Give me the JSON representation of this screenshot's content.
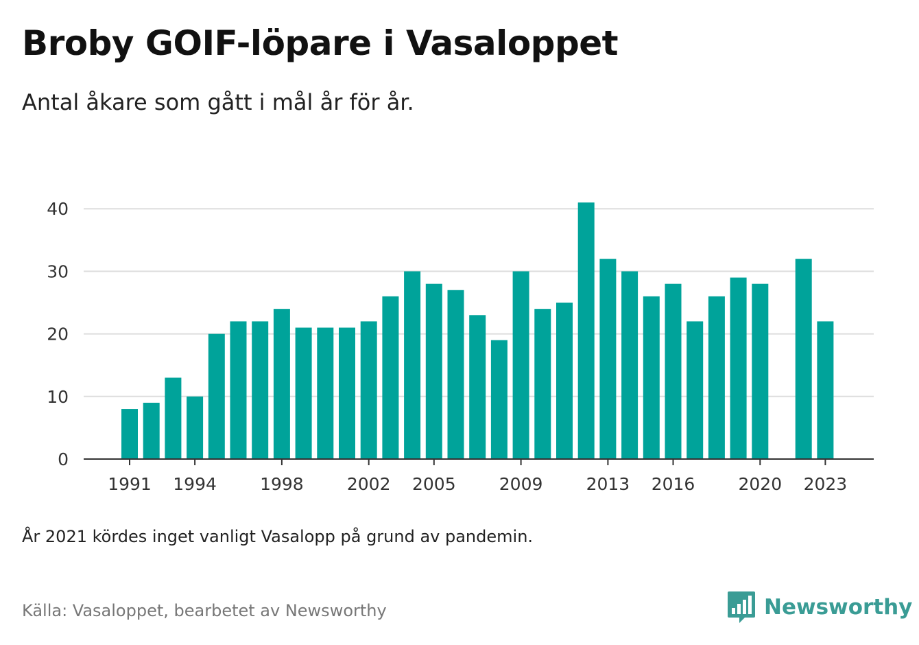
{
  "title": "Broby GOIF-löpare i Vasaloppet",
  "subtitle": "Antal åkare som gått i mål år för år.",
  "note": "År 2021 kördes inget vanligt Vasalopp på grund av pandemin.",
  "source": "Källa: Vasaloppet, bearbetet av Newsworthy",
  "brand": {
    "name": "Newsworthy",
    "icon": "newsworthy-logo-icon",
    "color": "#3a9c95"
  },
  "colors": {
    "bar": "#00a39a",
    "grid": "#dddddd",
    "axis": "#333333"
  },
  "chart_data": {
    "type": "bar",
    "x": [
      1991,
      1992,
      1993,
      1994,
      1995,
      1996,
      1997,
      1998,
      1999,
      2000,
      2001,
      2002,
      2003,
      2004,
      2005,
      2006,
      2007,
      2008,
      2009,
      2010,
      2011,
      2012,
      2013,
      2014,
      2015,
      2016,
      2017,
      2018,
      2019,
      2020,
      2021,
      2022,
      2023
    ],
    "values": [
      8,
      9,
      13,
      10,
      20,
      22,
      22,
      24,
      21,
      21,
      21,
      22,
      26,
      30,
      28,
      27,
      23,
      19,
      30,
      24,
      25,
      41,
      32,
      30,
      26,
      28,
      22,
      26,
      29,
      28,
      null,
      32,
      22
    ],
    "xticks": [
      1991,
      1994,
      1998,
      2002,
      2005,
      2009,
      2013,
      2016,
      2020,
      2023
    ],
    "yticks": [
      0,
      10,
      20,
      30,
      40
    ],
    "ylim": [
      0,
      42
    ],
    "grid": true,
    "legend": "none"
  }
}
